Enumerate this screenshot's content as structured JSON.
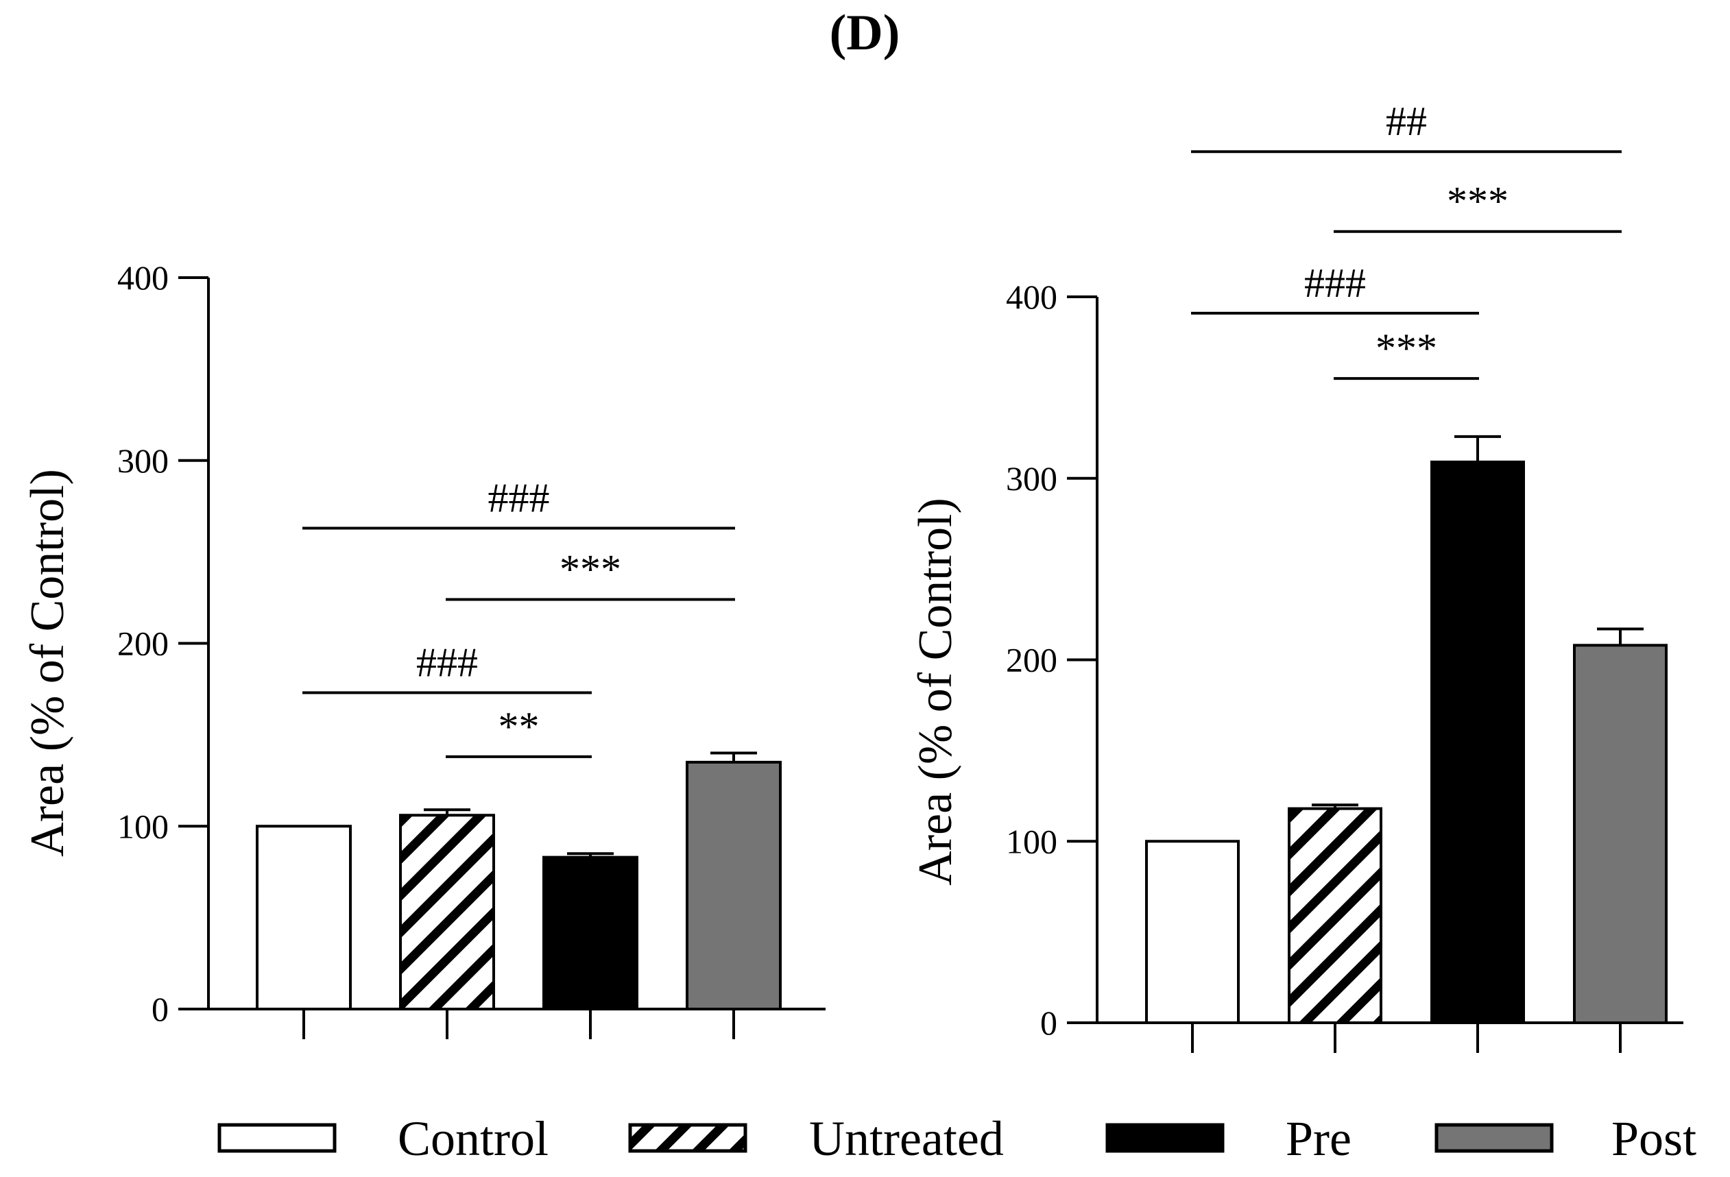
{
  "panel_label": "(D)",
  "legend": [
    {
      "name": "Control",
      "style": "white"
    },
    {
      "name": "Untreated",
      "style": "hatched"
    },
    {
      "name": "Pre",
      "style": "black"
    },
    {
      "name": "Post",
      "style": "gray"
    }
  ],
  "colors": {
    "white": "#ffffff",
    "black": "#000000",
    "gray": "#757575",
    "hatch": "#000000"
  },
  "chart_data": [
    {
      "type": "bar",
      "title": "",
      "xlabel": "",
      "ylabel": "Area (% of Control)",
      "ylim": [
        0,
        400
      ],
      "yticks": [
        0,
        100,
        200,
        300,
        400
      ],
      "categories": [
        "Control",
        "Untreated",
        "Pre",
        "Post"
      ],
      "values": [
        100,
        106,
        83,
        135
      ],
      "errors": [
        0,
        3,
        2,
        5
      ],
      "significance": [
        {
          "from": 0,
          "to": 3,
          "label": "###",
          "level": 263
        },
        {
          "from": 1,
          "to": 3,
          "label": "***",
          "level": 224
        },
        {
          "from": 0,
          "to": 2,
          "label": "###",
          "level": 173
        },
        {
          "from": 1,
          "to": 2,
          "label": "**",
          "level": 138
        }
      ]
    },
    {
      "type": "bar",
      "title": "",
      "xlabel": "",
      "ylabel": "Area (% of Control)",
      "ylim": [
        0,
        400
      ],
      "yticks": [
        0,
        100,
        200,
        300,
        400
      ],
      "categories": [
        "Control",
        "Untreated",
        "Pre",
        "Post"
      ],
      "values": [
        100,
        118,
        309,
        208
      ],
      "errors": [
        0,
        2,
        14,
        9
      ],
      "significance": [
        {
          "from": 0,
          "to": 3,
          "label": "##",
          "level": 480
        },
        {
          "from": 1,
          "to": 3,
          "label": "***",
          "level": 436
        },
        {
          "from": 0,
          "to": 2,
          "label": "###",
          "level": 391
        },
        {
          "from": 1,
          "to": 2,
          "label": "***",
          "level": 355
        }
      ]
    }
  ]
}
